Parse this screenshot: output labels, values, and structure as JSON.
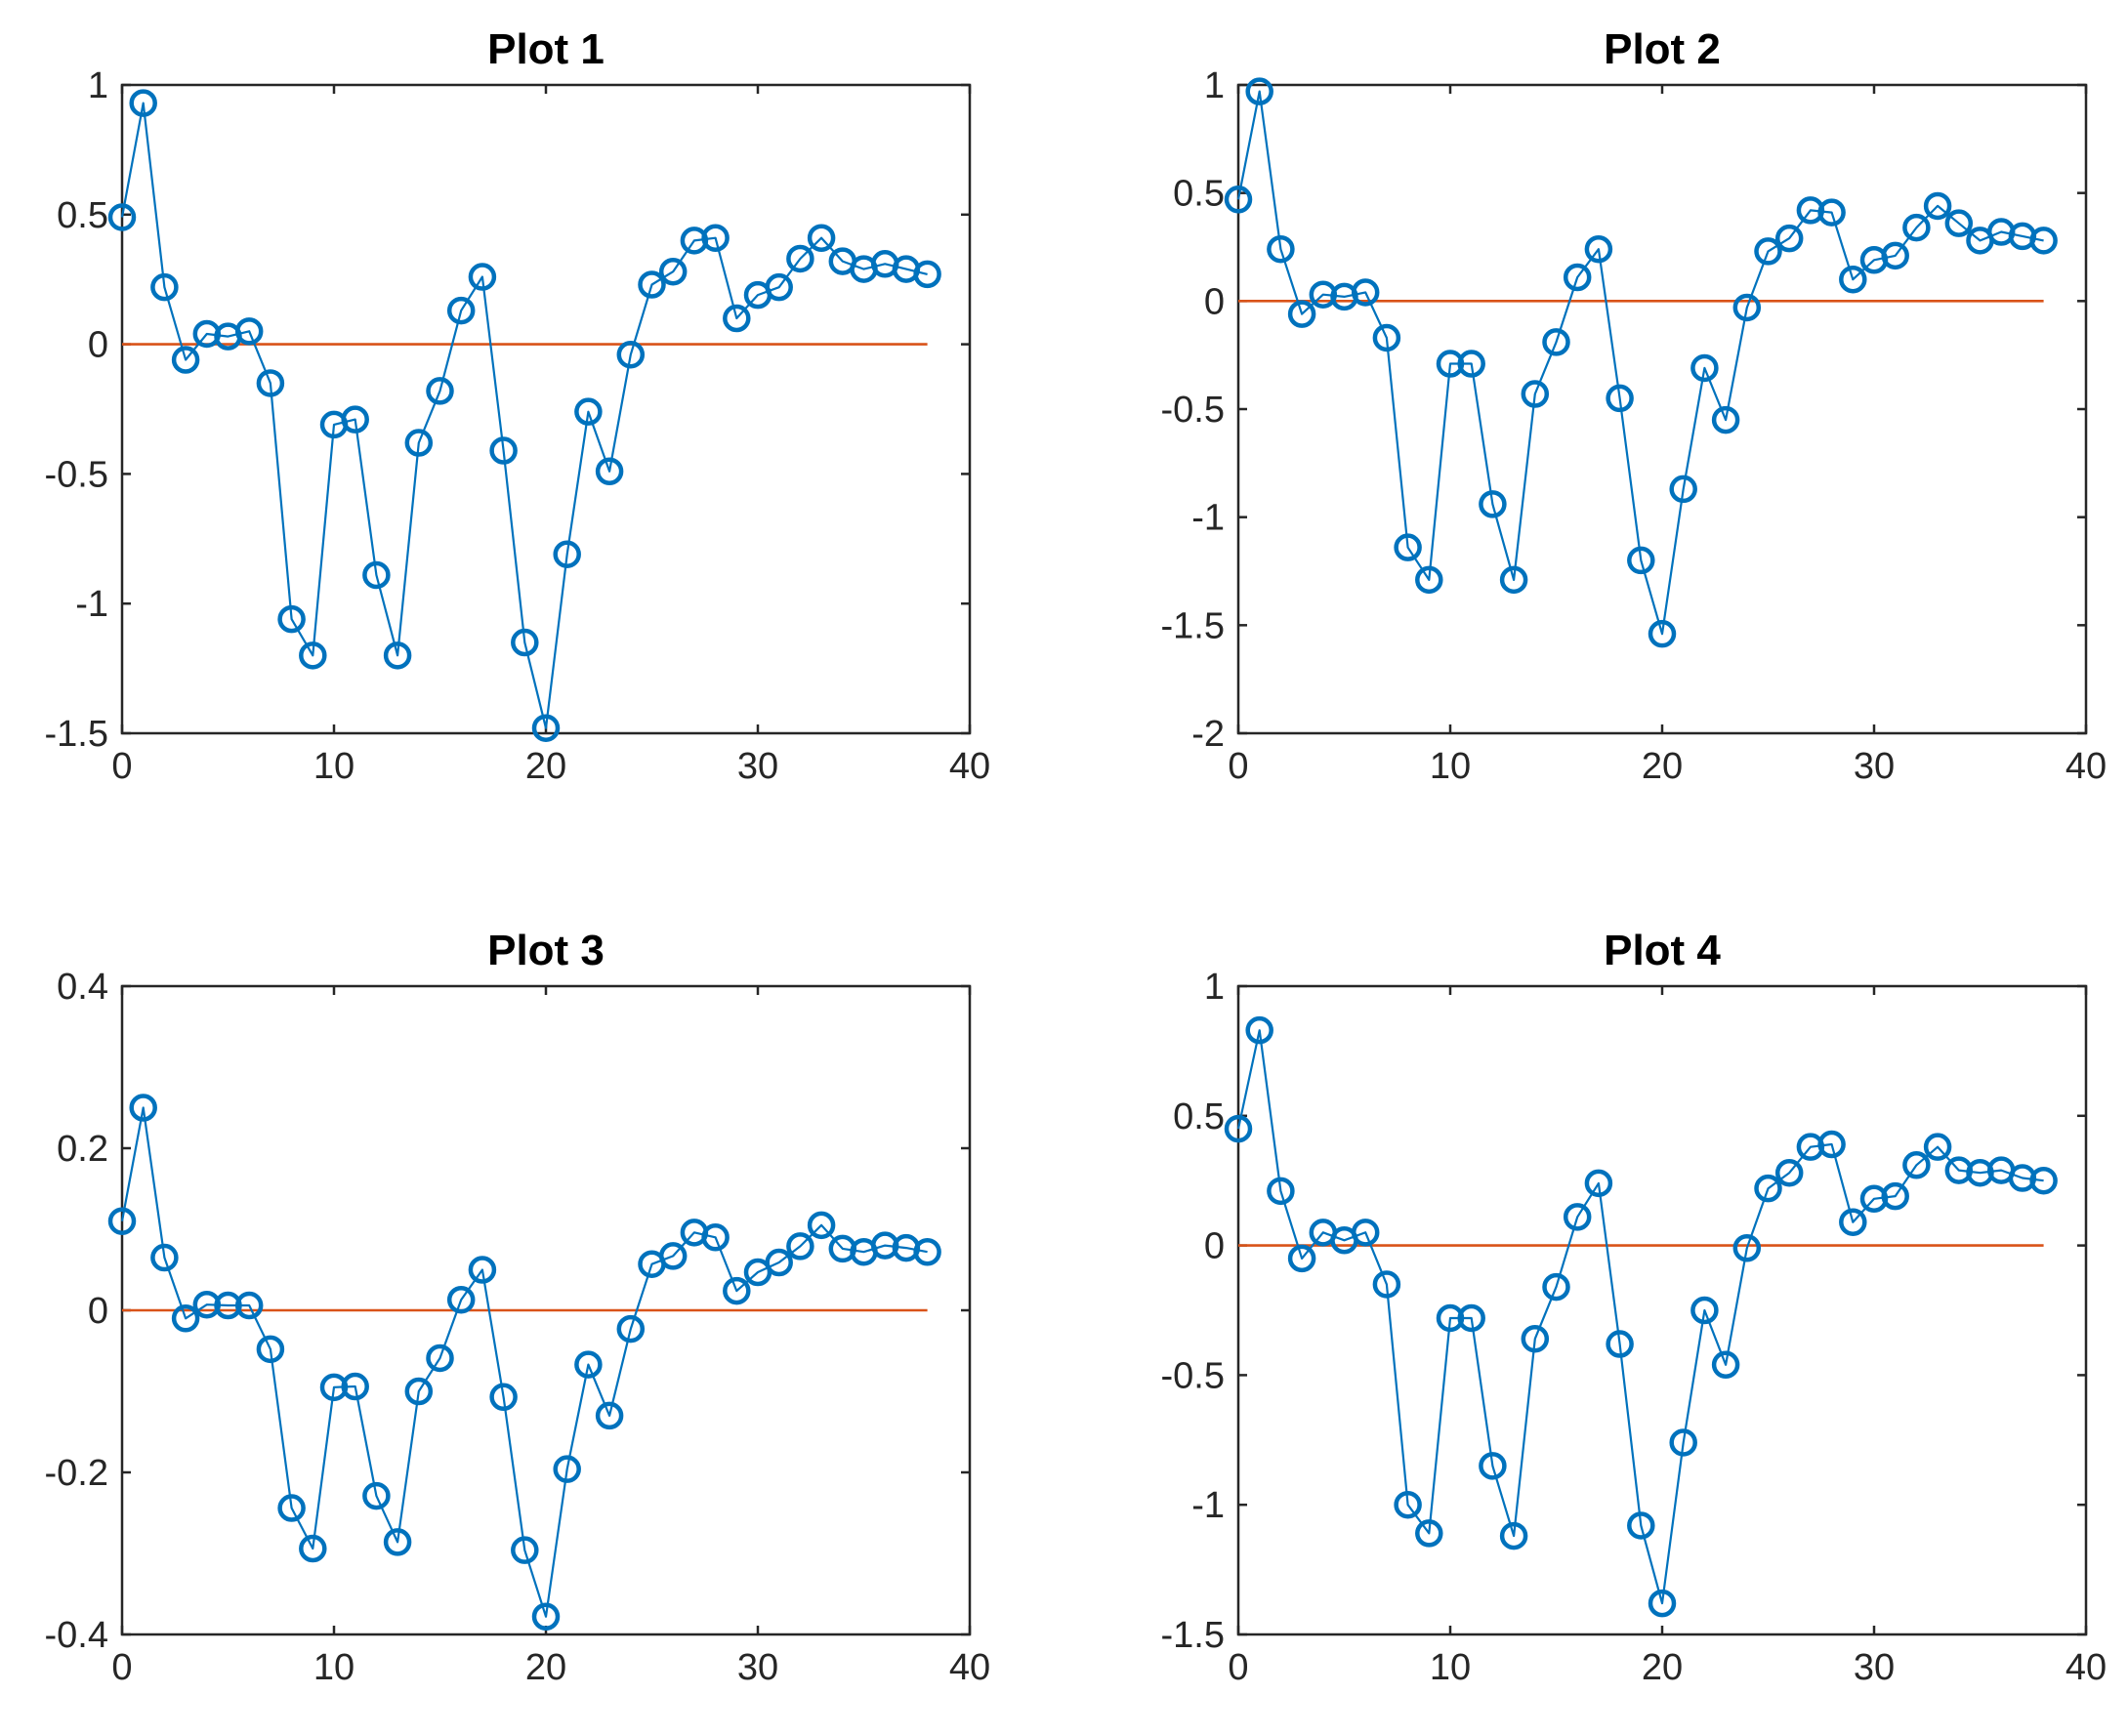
{
  "chart_data": [
    {
      "type": "line",
      "title": "Plot 1",
      "xlabel": "",
      "ylabel": "",
      "xlim": [
        0,
        40
      ],
      "ylim": [
        -1.5,
        1
      ],
      "xticks": [
        0,
        10,
        20,
        30,
        40
      ],
      "yticks": [
        -1.5,
        -1,
        -0.5,
        0,
        0.5,
        1
      ],
      "xtick_labels": [
        "0",
        "10",
        "20",
        "30",
        "40"
      ],
      "ytick_labels": [
        "-1.5",
        "-1",
        "-0.5",
        "0",
        "0.5",
        "1"
      ],
      "grid": false,
      "series": [
        {
          "x": [
            0,
            1,
            2,
            3,
            4,
            5,
            6,
            7,
            8,
            9,
            10,
            11,
            12,
            13,
            14,
            15,
            16,
            17,
            18,
            19,
            20,
            21,
            22,
            23,
            24,
            25,
            26,
            27,
            28,
            29,
            30,
            31,
            32,
            33,
            34,
            35,
            36,
            37,
            38
          ],
          "values": [
            0.49,
            0.93,
            0.22,
            -0.06,
            0.04,
            0.03,
            0.05,
            -0.15,
            -1.06,
            -1.2,
            -0.31,
            -0.29,
            -0.89,
            -1.2,
            -0.38,
            -0.18,
            0.13,
            0.26,
            -0.41,
            -1.15,
            -1.48,
            -0.81,
            -0.26,
            -0.49,
            -0.04,
            0.23,
            0.28,
            0.4,
            0.41,
            0.1,
            0.19,
            0.22,
            0.33,
            0.41,
            0.32,
            0.29,
            0.31,
            0.29,
            0.27
          ],
          "color": "#0072BD",
          "marker": "circle"
        },
        {
          "x": [
            0,
            38
          ],
          "values": [
            0,
            0
          ],
          "color": "#D95319",
          "marker": "none"
        }
      ]
    },
    {
      "type": "line",
      "title": "Plot 2",
      "xlabel": "",
      "ylabel": "",
      "xlim": [
        0,
        40
      ],
      "ylim": [
        -2,
        1
      ],
      "xticks": [
        0,
        10,
        20,
        30,
        40
      ],
      "yticks": [
        -2,
        -1.5,
        -1,
        -0.5,
        0,
        0.5,
        1
      ],
      "xtick_labels": [
        "0",
        "10",
        "20",
        "30",
        "40"
      ],
      "ytick_labels": [
        "-2",
        "-1.5",
        "-1",
        "-0.5",
        "0",
        "0.5",
        "1"
      ],
      "grid": false,
      "series": [
        {
          "x": [
            0,
            1,
            2,
            3,
            4,
            5,
            6,
            7,
            8,
            9,
            10,
            11,
            12,
            13,
            14,
            15,
            16,
            17,
            18,
            19,
            20,
            21,
            22,
            23,
            24,
            25,
            26,
            27,
            28,
            29,
            30,
            31,
            32,
            33,
            34,
            35,
            36,
            37,
            38
          ],
          "values": [
            0.47,
            0.97,
            0.24,
            -0.06,
            0.03,
            0.02,
            0.04,
            -0.17,
            -1.14,
            -1.29,
            -0.29,
            -0.29,
            -0.94,
            -1.29,
            -0.43,
            -0.19,
            0.11,
            0.24,
            -0.45,
            -1.2,
            -1.54,
            -0.87,
            -0.31,
            -0.55,
            -0.03,
            0.23,
            0.29,
            0.42,
            0.41,
            0.1,
            0.19,
            0.21,
            0.34,
            0.44,
            0.36,
            0.28,
            0.32,
            0.3,
            0.28
          ],
          "color": "#0072BD",
          "marker": "circle"
        },
        {
          "x": [
            0,
            38
          ],
          "values": [
            0,
            0
          ],
          "color": "#D95319",
          "marker": "none"
        }
      ]
    },
    {
      "type": "line",
      "title": "Plot 3",
      "xlabel": "",
      "ylabel": "",
      "xlim": [
        0,
        40
      ],
      "ylim": [
        -0.4,
        0.4
      ],
      "xticks": [
        0,
        10,
        20,
        30,
        40
      ],
      "yticks": [
        -0.4,
        -0.2,
        0,
        0.2,
        0.4
      ],
      "xtick_labels": [
        "0",
        "10",
        "20",
        "30",
        "40"
      ],
      "ytick_labels": [
        "-0.4",
        "-0.2",
        "0",
        "0.2",
        "0.4"
      ],
      "grid": false,
      "series": [
        {
          "x": [
            0,
            1,
            2,
            3,
            4,
            5,
            6,
            7,
            8,
            9,
            10,
            11,
            12,
            13,
            14,
            15,
            16,
            17,
            18,
            19,
            20,
            21,
            22,
            23,
            24,
            25,
            26,
            27,
            28,
            29,
            30,
            31,
            32,
            33,
            34,
            35,
            36,
            37,
            38
          ],
          "values": [
            0.11,
            0.25,
            0.065,
            -0.01,
            0.007,
            0.006,
            0.006,
            -0.048,
            -0.244,
            -0.294,
            -0.095,
            -0.094,
            -0.229,
            -0.286,
            -0.1,
            -0.059,
            0.013,
            0.05,
            -0.107,
            -0.296,
            -0.378,
            -0.196,
            -0.067,
            -0.13,
            -0.023,
            0.057,
            0.067,
            0.096,
            0.09,
            0.024,
            0.047,
            0.059,
            0.079,
            0.105,
            0.076,
            0.072,
            0.08,
            0.077,
            0.072
          ],
          "color": "#0072BD",
          "marker": "circle"
        },
        {
          "x": [
            0,
            38
          ],
          "values": [
            0,
            0
          ],
          "color": "#D95319",
          "marker": "none"
        }
      ]
    },
    {
      "type": "line",
      "title": "Plot 4",
      "xlabel": "",
      "ylabel": "",
      "xlim": [
        0,
        40
      ],
      "ylim": [
        -1.5,
        1
      ],
      "xticks": [
        0,
        10,
        20,
        30,
        40
      ],
      "yticks": [
        -1.5,
        -1,
        -0.5,
        0,
        0.5,
        1
      ],
      "xtick_labels": [
        "0",
        "10",
        "20",
        "30",
        "40"
      ],
      "ytick_labels": [
        "-1.5",
        "-1",
        "-0.5",
        "0",
        "0.5",
        "1"
      ],
      "grid": false,
      "series": [
        {
          "x": [
            0,
            1,
            2,
            3,
            4,
            5,
            6,
            7,
            8,
            9,
            10,
            11,
            12,
            13,
            14,
            15,
            16,
            17,
            18,
            19,
            20,
            21,
            22,
            23,
            24,
            25,
            26,
            27,
            28,
            29,
            30,
            31,
            32,
            33,
            34,
            35,
            36,
            37,
            38
          ],
          "values": [
            0.45,
            0.83,
            0.21,
            -0.05,
            0.05,
            0.02,
            0.05,
            -0.15,
            -1.0,
            -1.11,
            -0.28,
            -0.28,
            -0.85,
            -1.12,
            -0.36,
            -0.16,
            0.11,
            0.24,
            -0.38,
            -1.08,
            -1.38,
            -0.76,
            -0.25,
            -0.46,
            -0.01,
            0.22,
            0.28,
            0.38,
            0.39,
            0.09,
            0.18,
            0.19,
            0.31,
            0.38,
            0.29,
            0.28,
            0.29,
            0.26,
            0.25
          ],
          "color": "#0072BD",
          "marker": "circle"
        },
        {
          "x": [
            0,
            38
          ],
          "values": [
            0,
            0
          ],
          "color": "#D95319",
          "marker": "none"
        }
      ]
    }
  ]
}
